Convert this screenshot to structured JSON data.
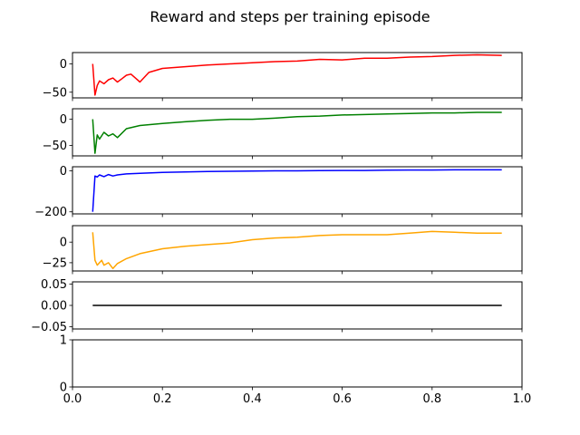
{
  "title": "Reward and steps per training episode",
  "chart_data": {
    "type": "line",
    "title": "Reward and steps per training episode",
    "shared_x_ticks": [
      "0.0",
      "0.2",
      "0.4",
      "0.6",
      "0.8",
      "1.0"
    ],
    "x_ticks": [
      0.0,
      0.2,
      0.4,
      0.6,
      0.8,
      1.0
    ],
    "panels": [
      {
        "ylim": [
          -60,
          20
        ],
        "y_ticks": [
          0,
          -50
        ],
        "y_tick_labels": [
          "0",
          "−50"
        ],
        "series": [
          {
            "color": "#ff0000",
            "x": [
              0.045,
              0.05,
              0.055,
              0.06,
              0.07,
              0.08,
              0.09,
              0.1,
              0.11,
              0.12,
              0.13,
              0.14,
              0.15,
              0.17,
              0.2,
              0.25,
              0.3,
              0.35,
              0.4,
              0.45,
              0.5,
              0.55,
              0.6,
              0.65,
              0.7,
              0.75,
              0.8,
              0.85,
              0.9,
              0.955
            ],
            "y": [
              0,
              -55,
              -38,
              -30,
              -35,
              -28,
              -25,
              -32,
              -26,
              -20,
              -18,
              -25,
              -32,
              -15,
              -8,
              -5,
              -2,
              0,
              2,
              4,
              5,
              8,
              7,
              10,
              10,
              12,
              13,
              15,
              16,
              15
            ]
          }
        ]
      },
      {
        "ylim": [
          -70,
          20
        ],
        "y_ticks": [
          0,
          -50
        ],
        "y_tick_labels": [
          "0",
          "−50"
        ],
        "series": [
          {
            "color": "#008000",
            "x": [
              0.045,
              0.05,
              0.055,
              0.06,
              0.07,
              0.08,
              0.09,
              0.1,
              0.12,
              0.15,
              0.2,
              0.25,
              0.3,
              0.35,
              0.4,
              0.45,
              0.5,
              0.55,
              0.6,
              0.65,
              0.7,
              0.75,
              0.8,
              0.85,
              0.9,
              0.955
            ],
            "y": [
              0,
              -65,
              -30,
              -38,
              -25,
              -32,
              -28,
              -35,
              -18,
              -12,
              -8,
              -5,
              -2,
              0,
              0,
              2,
              5,
              6,
              8,
              9,
              10,
              11,
              12,
              12,
              13,
              13
            ]
          }
        ]
      },
      {
        "ylim": [
          -210,
          20
        ],
        "y_ticks": [
          0,
          -200
        ],
        "y_tick_labels": [
          "0",
          "−200"
        ],
        "series": [
          {
            "color": "#0000ff",
            "x": [
              0.045,
              0.05,
              0.055,
              0.06,
              0.07,
              0.08,
              0.09,
              0.1,
              0.12,
              0.15,
              0.2,
              0.25,
              0.3,
              0.35,
              0.4,
              0.45,
              0.5,
              0.55,
              0.6,
              0.65,
              0.7,
              0.75,
              0.8,
              0.85,
              0.9,
              0.955
            ],
            "y": [
              -200,
              -25,
              -30,
              -20,
              -28,
              -18,
              -25,
              -20,
              -15,
              -12,
              -8,
              -5,
              -3,
              -2,
              -1,
              0,
              0,
              1,
              2,
              2,
              3,
              4,
              4,
              5,
              5,
              5
            ]
          }
        ]
      },
      {
        "ylim": [
          -35,
          20
        ],
        "y_ticks": [
          0,
          -25
        ],
        "y_tick_labels": [
          "0",
          "−25"
        ],
        "series": [
          {
            "color": "#ffa500",
            "x": [
              0.045,
              0.05,
              0.055,
              0.06,
              0.065,
              0.07,
              0.08,
              0.09,
              0.1,
              0.12,
              0.15,
              0.2,
              0.25,
              0.3,
              0.35,
              0.4,
              0.45,
              0.5,
              0.55,
              0.6,
              0.65,
              0.7,
              0.75,
              0.8,
              0.85,
              0.9,
              0.955
            ],
            "y": [
              12,
              -22,
              -28,
              -25,
              -22,
              -28,
              -25,
              -32,
              -26,
              -20,
              -14,
              -8,
              -5,
              -3,
              -1,
              3,
              5,
              6,
              8,
              9,
              9,
              9,
              11,
              13,
              12,
              11,
              11
            ]
          }
        ]
      },
      {
        "ylim": [
          -0.055,
          0.055
        ],
        "y_ticks": [
          0.05,
          0.0,
          -0.05
        ],
        "y_tick_labels": [
          "0.05",
          "0.00",
          "−0.05"
        ],
        "series": [
          {
            "color": "#000000",
            "x": [
              0.045,
              0.955
            ],
            "y": [
              0,
              0
            ]
          }
        ]
      },
      {
        "ylim": [
          0,
          1
        ],
        "y_ticks": [
          1,
          0
        ],
        "y_tick_labels": [
          "1",
          "0"
        ],
        "series": []
      }
    ],
    "xlim": [
      0,
      1
    ],
    "grid": false,
    "legend": false
  }
}
